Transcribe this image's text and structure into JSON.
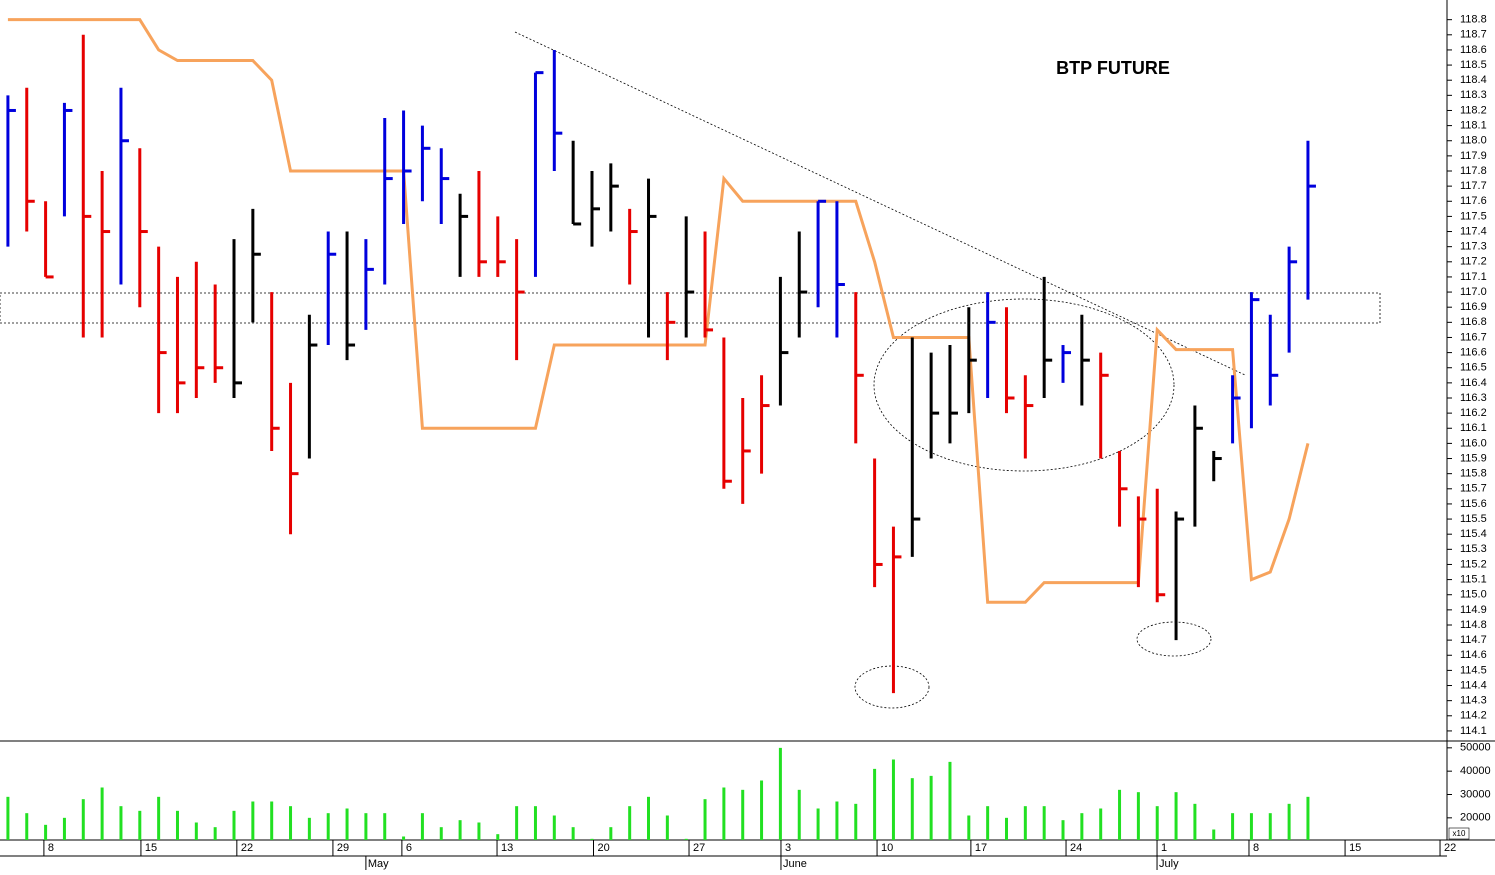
{
  "chart_data": {
    "type": "ohlc",
    "title": "BTP FUTURE",
    "xlim": [
      -0.42,
      76.38
    ],
    "ylim": [
      114.04,
      118.93
    ],
    "yticks": [
      114.1,
      114.2,
      114.3,
      114.4,
      114.5,
      114.6,
      114.7,
      114.8,
      114.9,
      {
        "value": 115.0,
        "label": "115.0"
      },
      115.1,
      115.2,
      115.3,
      115.4,
      115.5,
      115.6,
      115.7,
      115.8,
      115.9,
      {
        "value": 116.0,
        "label": "116.0"
      },
      116.1,
      116.2,
      116.3,
      116.4,
      116.5,
      116.6,
      116.7,
      116.8,
      116.9,
      {
        "value": 117.0,
        "label": "117.0"
      },
      117.1,
      117.2,
      117.3,
      117.4,
      117.5,
      117.6,
      117.7,
      117.8,
      117.9,
      {
        "value": 118.0,
        "label": "118.0"
      },
      118.1,
      118.2,
      118.3,
      118.4,
      118.5,
      118.6,
      118.7,
      118.8
    ],
    "xticks": [
      {
        "value": 1.91,
        "label": "8"
      },
      {
        "value": 7.06,
        "label": "15"
      },
      {
        "value": 12.15,
        "label": "22"
      },
      {
        "value": 17.25,
        "label": "29"
      },
      {
        "value": 20.91,
        "label": "6"
      },
      {
        "value": 25.96,
        "label": "13"
      },
      {
        "value": 31.08,
        "label": "20"
      },
      {
        "value": 36.15,
        "label": "27"
      },
      {
        "value": 41.03,
        "label": "3"
      },
      {
        "value": 46.13,
        "label": "10"
      },
      {
        "value": 51.11,
        "label": "17"
      },
      {
        "value": 56.16,
        "label": "24"
      },
      {
        "value": 60.99,
        "label": "1"
      },
      {
        "value": 65.87,
        "label": "8"
      },
      {
        "value": 70.97,
        "label": "15"
      },
      {
        "value": 76.01,
        "label": "22"
      }
    ],
    "month_ticks": [
      {
        "value": 19.0,
        "label": "May"
      },
      {
        "value": 41.03,
        "label": "June"
      },
      {
        "value": 60.99,
        "label": "July"
      }
    ],
    "high": [
      118.3,
      118.35,
      117.6,
      118.25,
      118.7,
      117.8,
      118.35,
      117.95,
      117.3,
      117.1,
      117.2,
      117.05,
      117.35,
      117.55,
      117.0,
      116.4,
      116.85,
      117.4,
      117.4,
      117.35,
      118.15,
      118.2,
      118.1,
      117.95,
      117.65,
      117.8,
      117.5,
      117.35,
      118.45,
      118.6,
      118.0,
      117.8,
      117.85,
      117.55,
      117.75,
      117.0,
      117.5,
      117.4,
      116.7,
      116.3,
      116.45,
      117.1,
      117.4,
      117.6,
      117.6,
      117.0,
      115.9,
      115.45,
      116.7,
      116.6,
      116.65,
      116.9,
      117.0,
      116.9,
      116.45,
      117.1,
      116.65,
      116.85,
      116.6,
      115.95,
      115.65,
      115.7,
      115.55,
      116.25,
      115.95,
      116.45,
      117.0,
      116.85,
      117.3,
      118.0
    ],
    "low": [
      117.3,
      117.4,
      117.1,
      117.5,
      116.7,
      116.7,
      117.05,
      116.9,
      116.2,
      116.2,
      116.3,
      116.4,
      116.3,
      116.8,
      115.95,
      115.4,
      115.9,
      116.65,
      116.55,
      116.75,
      117.05,
      117.45,
      117.6,
      117.45,
      117.1,
      117.1,
      117.1,
      116.55,
      117.1,
      117.8,
      117.45,
      117.3,
      117.4,
      117.05,
      116.7,
      116.55,
      116.7,
      116.7,
      115.7,
      115.6,
      115.8,
      116.25,
      116.7,
      116.9,
      116.7,
      116.0,
      115.05,
      114.35,
      115.25,
      115.9,
      116.0,
      116.2,
      116.3,
      116.2,
      115.9,
      116.3,
      116.4,
      116.25,
      115.9,
      115.45,
      115.05,
      114.95,
      114.7,
      115.45,
      115.75,
      116.0,
      116.1,
      116.25,
      116.6,
      116.95
    ],
    "close": [
      118.2,
      117.6,
      117.1,
      118.2,
      117.5,
      117.4,
      118.0,
      117.4,
      116.6,
      116.4,
      116.5,
      116.5,
      116.4,
      117.25,
      116.1,
      115.8,
      116.65,
      117.25,
      116.65,
      117.15,
      117.75,
      117.8,
      117.95,
      117.75,
      117.5,
      117.2,
      117.2,
      117.0,
      118.45,
      118.05,
      117.45,
      117.55,
      117.7,
      117.4,
      117.5,
      116.8,
      117.0,
      116.75,
      115.75,
      115.95,
      116.25,
      116.6,
      117.0,
      117.6,
      117.05,
      116.45,
      115.2,
      115.25,
      115.5,
      116.2,
      116.2,
      116.55,
      116.8,
      116.3,
      116.25,
      116.55,
      116.6,
      116.55,
      116.45,
      115.7,
      115.5,
      115.0,
      115.5,
      116.1,
      115.9,
      116.3,
      116.95,
      116.45,
      117.2,
      117.7
    ],
    "bar_colors": [
      "#0000dd",
      "#e60000",
      "#e60000",
      "#0000dd",
      "#e60000",
      "#e60000",
      "#0000dd",
      "#e60000",
      "#e60000",
      "#e60000",
      "#e60000",
      "#e60000",
      "#000000",
      "#000000",
      "#e60000",
      "#e60000",
      "#000000",
      "#0000dd",
      "#000000",
      "#0000dd",
      "#0000dd",
      "#0000dd",
      "#0000dd",
      "#0000dd",
      "#000000",
      "#e60000",
      "#e60000",
      "#e60000",
      "#0000dd",
      "#0000dd",
      "#000000",
      "#000000",
      "#000000",
      "#e60000",
      "#000000",
      "#e60000",
      "#000000",
      "#e60000",
      "#e60000",
      "#e60000",
      "#e60000",
      "#000000",
      "#000000",
      "#0000dd",
      "#0000dd",
      "#e60000",
      "#e60000",
      "#e60000",
      "#000000",
      "#000000",
      "#000000",
      "#000000",
      "#0000dd",
      "#e60000",
      "#e60000",
      "#000000",
      "#0000dd",
      "#000000",
      "#e60000",
      "#e60000",
      "#e60000",
      "#e60000",
      "#000000",
      "#000000",
      "#000000",
      "#0000dd",
      "#0000dd",
      "#0000dd",
      "#0000dd",
      "#0000dd"
    ],
    "overlay": {
      "color": "#f7a35c",
      "values": [
        118.8,
        118.8,
        118.8,
        118.8,
        118.8,
        118.8,
        118.8,
        118.8,
        118.6,
        118.53,
        118.53,
        118.53,
        118.53,
        118.53,
        118.4,
        117.8,
        117.8,
        117.8,
        117.8,
        117.8,
        117.8,
        117.8,
        116.1,
        116.1,
        116.1,
        116.1,
        116.1,
        116.1,
        116.1,
        116.65,
        116.65,
        116.65,
        116.65,
        116.65,
        116.65,
        116.65,
        116.65,
        116.65,
        117.75,
        117.6,
        117.6,
        117.6,
        117.6,
        117.6,
        117.6,
        117.6,
        117.2,
        116.7,
        116.7,
        116.7,
        116.7,
        116.7,
        114.95,
        114.95,
        114.95,
        115.08,
        115.08,
        115.08,
        115.08,
        115.08,
        115.08,
        116.75,
        116.62,
        116.62,
        116.62,
        116.62,
        115.1,
        115.15,
        115.5,
        116.0
      ]
    },
    "volume": {
      "color": "#22e022",
      "unit_label": "x10",
      "ylim": [
        10500,
        52500
      ],
      "yticks": [
        20000,
        30000,
        40000,
        50000
      ],
      "values": [
        29000,
        22000,
        17000,
        20000,
        28000,
        33000,
        25000,
        23000,
        29000,
        23000,
        18000,
        16000,
        23000,
        27000,
        27000,
        25000,
        20000,
        22000,
        24000,
        22000,
        22000,
        12000,
        22000,
        16000,
        19000,
        18000,
        13000,
        25000,
        25000,
        21000,
        16000,
        11000,
        16000,
        25000,
        29000,
        21000,
        11000,
        28000,
        33000,
        32000,
        36000,
        50000,
        32000,
        24000,
        27000,
        26000,
        41000,
        45000,
        37000,
        38000,
        44000,
        21000,
        25000,
        20000,
        25000,
        25000,
        19000,
        22000,
        24000,
        32000,
        31000,
        25000,
        31000,
        26000,
        15000,
        22000,
        22000,
        22000,
        26000,
        29000
      ]
    }
  }
}
